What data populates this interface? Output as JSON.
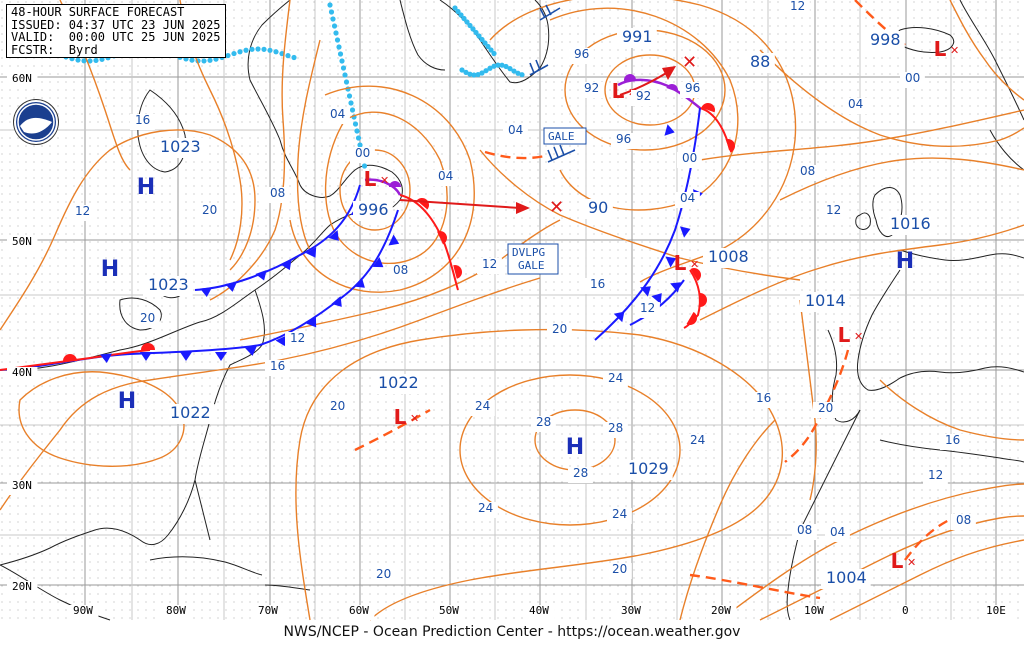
{
  "header": {
    "title": "48-HOUR SURFACE FORECAST",
    "issued": "ISSUED: 04:37 UTC 23 JUN 2025",
    "valid": "VALID:  00:00 UTC 25 JUN 2025",
    "forecaster": "FCSTR:  Byrd"
  },
  "footer": "NWS/NCEP - Ocean Prediction Center - https://ocean.weather.gov",
  "lat_labels": [
    "60N",
    "50N",
    "40N",
    "30N",
    "20N"
  ],
  "lon_labels": [
    "90W",
    "80W",
    "70W",
    "60W",
    "50W",
    "40W",
    "30W",
    "20W",
    "10W",
    "0",
    "10E"
  ],
  "highs": [
    {
      "label": "H",
      "pressure": "1023"
    },
    {
      "label": "H",
      "pressure": "1023"
    },
    {
      "label": "H",
      "pressure": "1022"
    },
    {
      "label": "H",
      "pressure": "1029"
    },
    {
      "label": "H",
      "pressure": "1016"
    }
  ],
  "lows": [
    {
      "label": "L",
      "pressure": "996"
    },
    {
      "label": "L",
      "pressure": "991"
    },
    {
      "label": "L",
      "pressure": "1008"
    },
    {
      "label": "L",
      "pressure": "1022"
    },
    {
      "label": "L",
      "pressure": "998"
    },
    {
      "label": "L",
      "pressure": "1014"
    },
    {
      "label": "L",
      "pressure": "1004"
    }
  ],
  "extra_pressure_labels": [
    "88",
    "90"
  ],
  "warnings": [
    "GALE",
    "DVLPG\nGALE"
  ],
  "isobar_labels": [
    "16",
    "12",
    "20",
    "20",
    "08",
    "04",
    "00",
    "04",
    "08",
    "12",
    "16",
    "20",
    "24",
    "28",
    "28",
    "28",
    "24",
    "24",
    "24",
    "24",
    "20",
    "20",
    "12",
    "16",
    "92",
    "92",
    "96",
    "96",
    "96",
    "00",
    "04",
    "08",
    "12",
    "16",
    "20",
    "16",
    "12",
    "08",
    "04",
    "00",
    "04",
    "12",
    "16",
    "20",
    "08",
    "12",
    "04"
  ],
  "colors": {
    "isobar": "#e8802a",
    "front_cold": "#1a1aff",
    "front_warm": "#ff1a1a",
    "occluded": "#9b1fd6",
    "pressure_text": "#1b4fa8",
    "ice": "#33bbee",
    "grid": "#aaaaaa"
  }
}
